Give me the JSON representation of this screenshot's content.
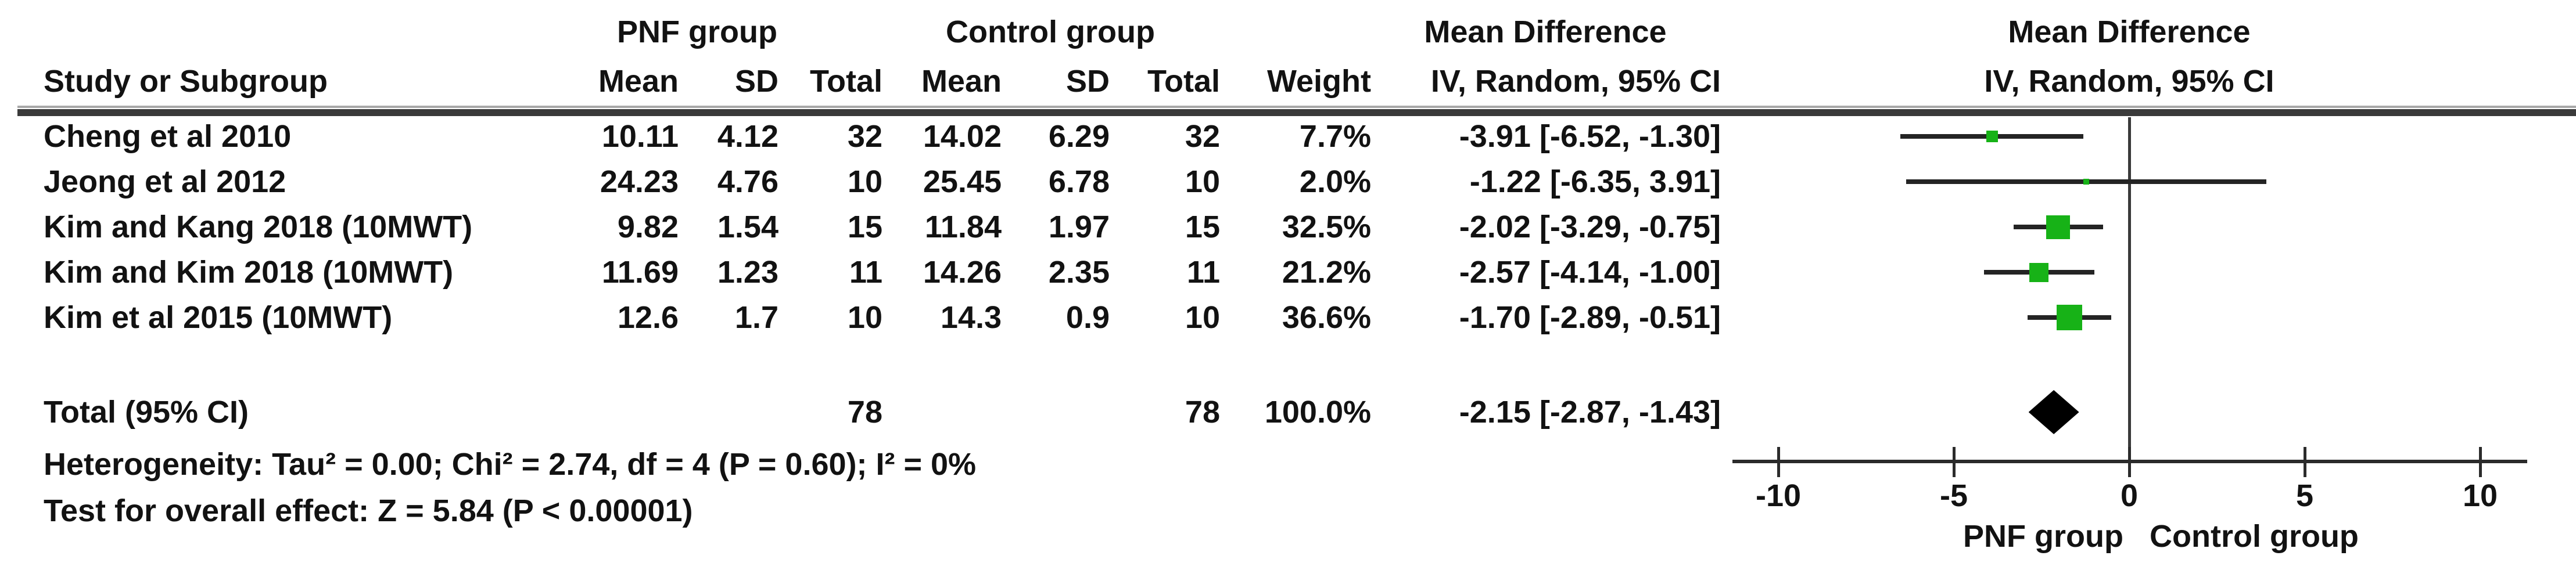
{
  "headers": {
    "group1_label": "PNF group",
    "group2_label": "Control group",
    "effect_table_label": "Mean Difference",
    "effect_plot_label": "Mean Difference",
    "study_col": "Study or Subgroup",
    "mean_col": "Mean",
    "sd_col": "SD",
    "total_col": "Total",
    "mean_col2": "Mean",
    "sd_col2": "SD",
    "total_col2": "Total",
    "weight_col": "Weight",
    "ci_col_table": "IV, Random, 95% CI",
    "ci_col_plot": "IV, Random, 95% CI"
  },
  "footer": {
    "heterogeneity": "Heterogeneity: Tau² = 0.00; Chi² = 2.74, df = 4 (P = 0.60); I² = 0%",
    "overall_effect": "Test for overall effect: Z = 5.84 (P < 0.00001)"
  },
  "axis_labels": {
    "left": "PNF group",
    "right": "Control group"
  },
  "colors": {
    "square": "#17b217",
    "diamond": "#000000",
    "ci_line": "#242424",
    "text": "#121212"
  },
  "chart_data": {
    "type": "forest_plot",
    "title": "Mean Difference, IV, Random, 95% CI — PNF group vs Control group",
    "x_ticks": [
      -10,
      -5,
      0,
      5,
      10
    ],
    "x_range": [
      -11.3,
      11.4
    ],
    "null_line": 0,
    "favours_left": "PNF group",
    "favours_right": "Control group",
    "studies": [
      {
        "name": "Cheng et al 2010",
        "mean1": "10.11",
        "sd1": "4.12",
        "n1": "32",
        "mean2": "14.02",
        "sd2": "6.29",
        "n2": "32",
        "weight": "7.7%",
        "weight_pct": 7.7,
        "ci_label": "-3.91 [-6.52, -1.30]",
        "md": -3.91,
        "lo": -6.52,
        "hi": -1.3
      },
      {
        "name": "Jeong et al 2012",
        "mean1": "24.23",
        "sd1": "4.76",
        "n1": "10",
        "mean2": "25.45",
        "sd2": "6.78",
        "n2": "10",
        "weight": "2.0%",
        "weight_pct": 2.0,
        "ci_label": "-1.22 [-6.35, 3.91]",
        "md": -1.22,
        "lo": -6.35,
        "hi": 3.91
      },
      {
        "name": "Kim and Kang 2018 (10MWT)",
        "mean1": "9.82",
        "sd1": "1.54",
        "n1": "15",
        "mean2": "11.84",
        "sd2": "1.97",
        "n2": "15",
        "weight": "32.5%",
        "weight_pct": 32.5,
        "ci_label": "-2.02 [-3.29, -0.75]",
        "md": -2.02,
        "lo": -3.29,
        "hi": -0.75
      },
      {
        "name": "Kim and Kim 2018 (10MWT)",
        "mean1": "11.69",
        "sd1": "1.23",
        "n1": "11",
        "mean2": "14.26",
        "sd2": "2.35",
        "n2": "11",
        "weight": "21.2%",
        "weight_pct": 21.2,
        "ci_label": "-2.57 [-4.14, -1.00]",
        "md": -2.57,
        "lo": -4.14,
        "hi": -1.0
      },
      {
        "name": "Kim et al 2015 (10MWT)",
        "mean1": "12.6",
        "sd1": "1.7",
        "n1": "10",
        "mean2": "14.3",
        "sd2": "0.9",
        "n2": "10",
        "weight": "36.6%",
        "weight_pct": 36.6,
        "ci_label": "-1.70 [-2.89, -0.51]",
        "md": -1.7,
        "lo": -2.89,
        "hi": -0.51
      }
    ],
    "total": {
      "label": "Total (95% CI)",
      "n1": "78",
      "n2": "78",
      "weight": "100.0%",
      "weight_pct": 100.0,
      "ci_label": "-2.15 [-2.87, -1.43]",
      "md": -2.15,
      "lo": -2.87,
      "hi": -1.43
    }
  }
}
